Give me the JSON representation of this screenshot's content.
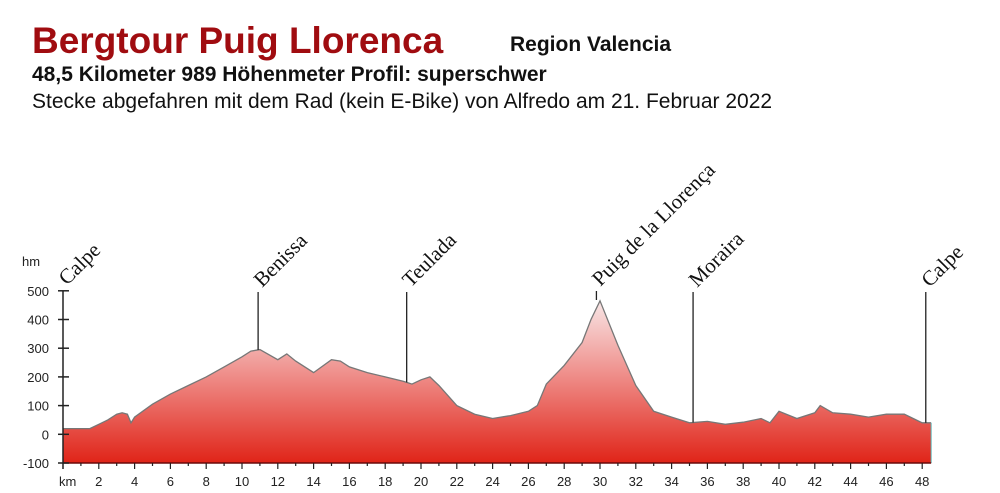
{
  "header": {
    "title": "Bergtour Puig Llorenca",
    "region": "Region Valencia",
    "stats": "48,5 Kilometer  989 Höhenmeter Profil: superschwer",
    "description": "Stecke abgefahren mit dem Rad (kein E-Bike) von Alfredo am 21. Februar 2022"
  },
  "colors": {
    "title": "#a00c10",
    "fill_top": "#f8e6e6",
    "fill_bottom": "#e02418",
    "outline": "#777777"
  },
  "chart_data": {
    "type": "area",
    "title": "Bergtour Puig Llorenca",
    "xlabel": "km",
    "ylabel": "hm",
    "xlim": [
      0,
      48.5
    ],
    "ylim": [
      -100,
      500
    ],
    "y_ticks": [
      "500",
      "400",
      "300",
      "200",
      "100",
      "0",
      "-100"
    ],
    "x_ticks": [
      "2",
      "4",
      "6",
      "8",
      "10",
      "12",
      "14",
      "16",
      "18",
      "20",
      "22",
      "24",
      "26",
      "28",
      "30",
      "32",
      "34",
      "36",
      "38",
      "40",
      "42",
      "44",
      "46",
      "48"
    ],
    "x": [
      0,
      1,
      1.5,
      2,
      2.5,
      3,
      3.3,
      3.6,
      3.8,
      4,
      5,
      6,
      7,
      8,
      9,
      10,
      10.5,
      11,
      12,
      12.5,
      13,
      14,
      15,
      15.5,
      16,
      17,
      18,
      19,
      19.5,
      20,
      20.5,
      21,
      22,
      23,
      24,
      25,
      26,
      26.5,
      27,
      28,
      29,
      29.5,
      30,
      31,
      32,
      33,
      34,
      35,
      36,
      37,
      38,
      39,
      39.5,
      40,
      41,
      42,
      42.3,
      43,
      44,
      45,
      46,
      47,
      47.5,
      48,
      48.5
    ],
    "values": [
      20,
      20,
      20,
      35,
      50,
      70,
      75,
      70,
      40,
      60,
      105,
      140,
      170,
      200,
      235,
      270,
      290,
      295,
      260,
      280,
      255,
      215,
      260,
      255,
      235,
      215,
      200,
      185,
      175,
      190,
      200,
      170,
      100,
      70,
      55,
      65,
      80,
      100,
      175,
      240,
      320,
      400,
      465,
      310,
      170,
      80,
      60,
      40,
      45,
      35,
      42,
      55,
      40,
      80,
      55,
      75,
      100,
      75,
      70,
      60,
      70,
      70,
      55,
      40,
      40
    ],
    "waypoints": [
      {
        "name": "Calpe",
        "km": 0
      },
      {
        "name": "Benissa",
        "km": 10.9
      },
      {
        "name": "Teulada",
        "km": 19.2
      },
      {
        "name": "Puig de la Llorença",
        "km": 29.8
      },
      {
        "name": "Moraira",
        "km": 35.2
      },
      {
        "name": "Calpe",
        "km": 48.2
      }
    ],
    "grid": false
  }
}
